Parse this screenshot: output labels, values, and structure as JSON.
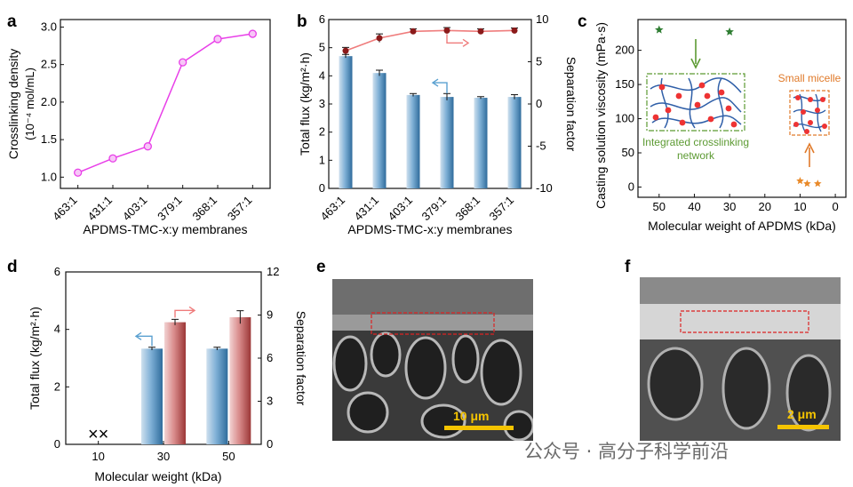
{
  "panels": {
    "a": "a",
    "b": "b",
    "c": "c",
    "d": "d",
    "e": "e",
    "f": "f"
  },
  "chart_data": [
    {
      "panel": "a",
      "type": "line",
      "categories": [
        "463:1",
        "431:1",
        "403:1",
        "379:1",
        "368:1",
        "357:1"
      ],
      "series": [
        {
          "values": [
            1.06,
            1.25,
            1.41,
            2.53,
            2.84,
            2.91
          ]
        }
      ],
      "xlabel": "APDMS-TMC-x:y membranes",
      "ylabel_line1": "Crosslinking density",
      "ylabel_line2": "(10⁻⁴ mol/mL)",
      "ylim": [
        0.85,
        3.1
      ],
      "yticks": [
        1.0,
        1.5,
        2.0,
        2.5,
        3.0
      ],
      "ytick_labels": [
        "1.0",
        "1.5",
        "2.0",
        "2.5",
        "3.0"
      ],
      "color": "#e83fe8"
    },
    {
      "panel": "b",
      "type": "bar",
      "categories": [
        "463:1",
        "431:1",
        "403:1",
        "379:1",
        "368:1",
        "357:1"
      ],
      "series": [
        {
          "values": [
            4.7,
            4.1,
            3.32,
            3.25,
            3.22,
            3.25
          ],
          "errors": [
            0.06,
            0.1,
            0.05,
            0.12,
            0.04,
            0.08
          ],
          "axis": "left",
          "color": "#4f88b5"
        },
        {
          "values": [
            6.3,
            7.8,
            8.6,
            8.7,
            8.6,
            8.7
          ],
          "errors": [
            0.4,
            0.5,
            0.3,
            0.35,
            0.3,
            0.3
          ],
          "axis": "right",
          "type": "line",
          "color": "#ef7c7c"
        }
      ],
      "xlabel": "APDMS-TMC-x:y membranes",
      "ylabel": "Total flux (kg/m²·h)",
      "ylabel2": "Separation factor",
      "ylim": [
        0,
        6
      ],
      "yticks": [
        0,
        1,
        2,
        3,
        4,
        5,
        6
      ],
      "ytick_labels": [
        "0",
        "1",
        "2",
        "3",
        "4",
        "5",
        "6"
      ],
      "ylim2": [
        -10,
        10
      ],
      "yticks2": [
        -10,
        -5,
        0,
        5,
        10
      ],
      "ytick_labels2": [
        "-10",
        "-5",
        "0",
        "5",
        "10"
      ]
    },
    {
      "panel": "c",
      "type": "scatter",
      "x": [
        50,
        30,
        5,
        8,
        10
      ],
      "y": [
        230,
        227,
        5,
        5,
        9
      ],
      "series_colors": [
        "#2e7d32",
        "#2e7d32",
        "#e98a2a",
        "#e98a2a",
        "#e98a2a"
      ],
      "xlabel": "Molecular weight of APDMS (kDa)",
      "ylabel": "Casting solution viscosity (mPa·s)",
      "xlim": [
        56,
        -3
      ],
      "ylim": [
        -15,
        245
      ],
      "xticks": [
        50,
        40,
        30,
        20,
        10,
        0
      ],
      "xtick_labels": [
        "50",
        "40",
        "30",
        "20",
        "10",
        "0"
      ],
      "yticks": [
        0,
        50,
        100,
        150,
        200
      ],
      "ytick_labels": [
        "0",
        "50",
        "100",
        "150",
        "200"
      ],
      "annotations": [
        "Integrated crosslinking",
        "network",
        "Small micelle"
      ],
      "annotation_colors": {
        "network": "#5c9a32",
        "micelle": "#e07a2a"
      }
    },
    {
      "panel": "d",
      "type": "bar",
      "categories": [
        "10",
        "30",
        "50"
      ],
      "series": [
        {
          "values": [
            null,
            3.33,
            3.33
          ],
          "errors": [
            0,
            0.05,
            0.05
          ],
          "axis": "left",
          "color": "#4f88b5"
        },
        {
          "values": [
            null,
            8.5,
            8.85
          ],
          "errors": [
            0,
            0.2,
            0.45
          ],
          "axis": "right",
          "color": "#c76b6b"
        }
      ],
      "missing_marker": "××",
      "xlabel": "Molecular weight (kDa)",
      "ylabel": "Total flux (kg/m²·h)",
      "ylabel2": "Separation factor",
      "ylim": [
        0,
        6
      ],
      "yticks": [
        0,
        2,
        4,
        6
      ],
      "ytick_labels": [
        "0",
        "2",
        "4",
        "6"
      ],
      "ylim2": [
        0,
        12
      ],
      "yticks2": [
        0,
        3,
        6,
        9,
        12
      ],
      "ytick_labels2": [
        "0",
        "3",
        "6",
        "9",
        "12"
      ]
    }
  ],
  "sem": {
    "e_scale": "10 μm",
    "f_scale": "2 μm"
  },
  "watermark": "公众号 · 高分子科学前沿"
}
